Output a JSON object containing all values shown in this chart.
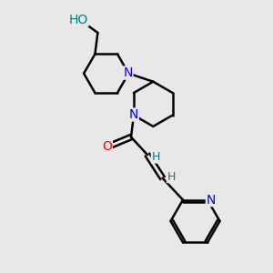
{
  "bg_color": "#e8e8e8",
  "atom_colors": {
    "N": "#0000FF",
    "O": "#FF0000",
    "C": "#000000",
    "H": "#008080"
  },
  "bond_color": "#000000",
  "bond_width": 1.8,
  "font_size_atoms": 10,
  "font_size_H": 9,
  "xlim": [
    0,
    10
  ],
  "ylim": [
    0,
    10
  ],
  "figsize": [
    3.0,
    3.0
  ],
  "dpi": 100
}
